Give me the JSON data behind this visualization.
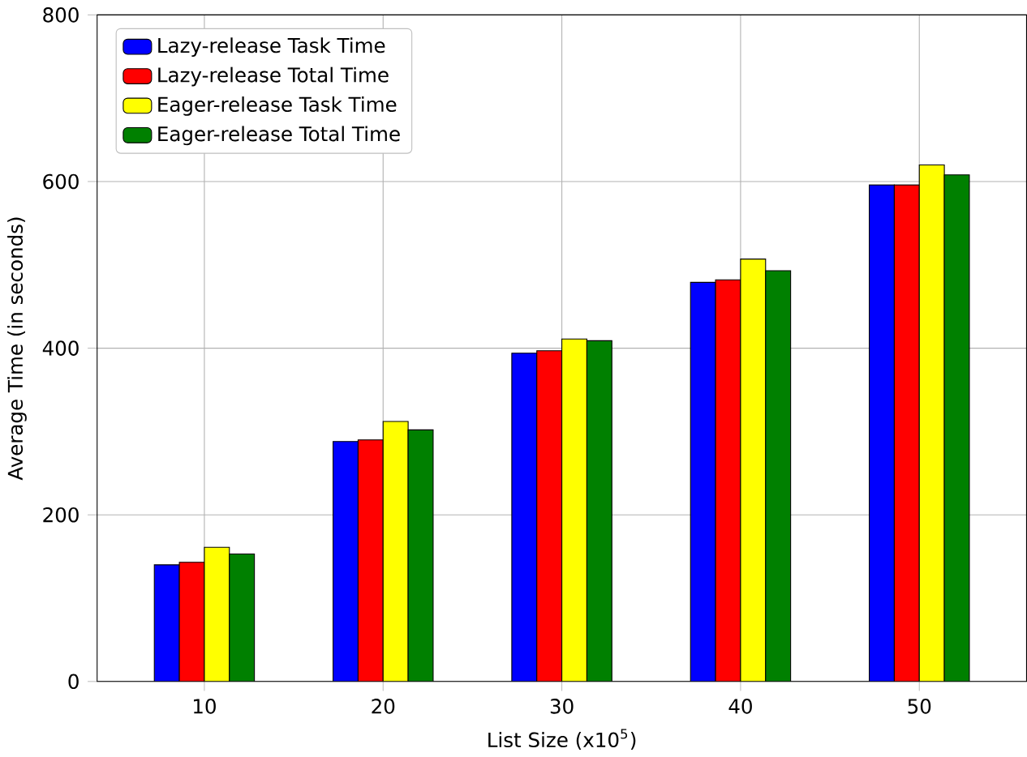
{
  "chart_data": {
    "type": "bar",
    "xlabel": "List Size (x10$^{5}$)",
    "ylabel": "Average Time (in seconds)",
    "categories": [
      "10",
      "20",
      "30",
      "40",
      "50"
    ],
    "series": [
      {
        "name": "Lazy-release Task Time",
        "color": "#0000ff",
        "values": [
          140,
          288,
          394,
          479,
          596
        ]
      },
      {
        "name": "Lazy-release Total Time",
        "color": "#ff0000",
        "values": [
          143,
          290,
          397,
          482,
          596
        ]
      },
      {
        "name": "Eager-release Task Time",
        "color": "#ffff00",
        "values": [
          161,
          312,
          411,
          507,
          620
        ]
      },
      {
        "name": "Eager-release Total Time",
        "color": "#008000",
        "values": [
          153,
          302,
          409,
          493,
          608
        ]
      }
    ],
    "ylim": [
      0,
      800
    ],
    "yticks": [
      0,
      200,
      400,
      600,
      800
    ],
    "grid": true,
    "legend": "top left"
  }
}
